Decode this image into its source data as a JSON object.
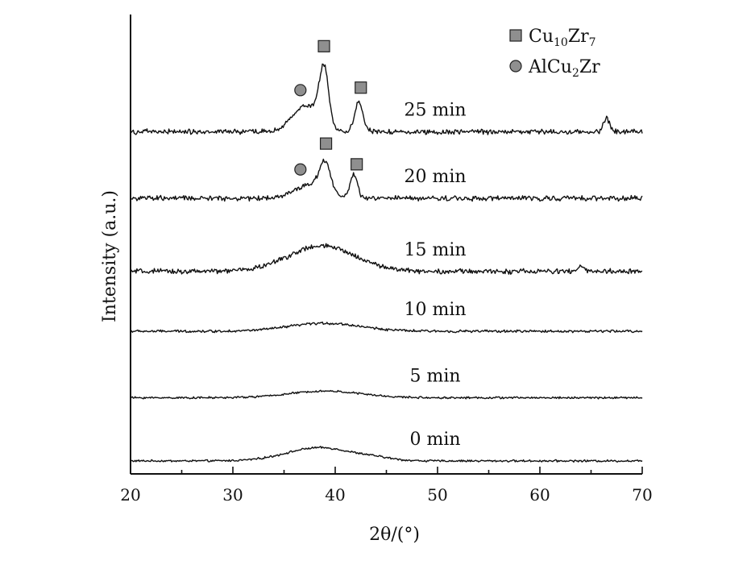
{
  "chart_data": {
    "type": "line",
    "xlabel": "2θ/(°)",
    "ylabel": "Intensity (a.u.)",
    "xlim": [
      20,
      70
    ],
    "xticks": [
      20,
      30,
      40,
      50,
      60,
      70
    ],
    "yticks": "none",
    "grid": false,
    "legend_position": "top-right",
    "legend": [
      {
        "marker": "square",
        "base": "Cu",
        "sub1": "10",
        "mid": "Zr",
        "sub2": "7",
        "color": "#8f8f8f"
      },
      {
        "marker": "circle",
        "base": "AlCu",
        "sub1": "2",
        "mid": "Zr",
        "sub2": "",
        "color": "#8f8f8f"
      }
    ],
    "series": [
      {
        "name": "0 min",
        "baseline": 0.05,
        "noise": 0.012,
        "peaks": [
          {
            "x": 38.5,
            "height": 0.2,
            "width": 3.2
          },
          {
            "x": 44,
            "height": 0.03,
            "width": 1.6
          }
        ]
      },
      {
        "name": "5 min",
        "baseline": 1.0,
        "noise": 0.012,
        "peaks": [
          {
            "x": 39,
            "height": 0.1,
            "width": 3.5
          }
        ]
      },
      {
        "name": "10 min",
        "baseline": 2.0,
        "noise": 0.015,
        "peaks": [
          {
            "x": 39,
            "height": 0.12,
            "width": 3.5
          }
        ]
      },
      {
        "name": "15 min",
        "baseline": 2.9,
        "noise": 0.03,
        "peaks": [
          {
            "x": 38.7,
            "height": 0.38,
            "width": 3.3
          },
          {
            "x": 64,
            "height": 0.08,
            "width": 0.3
          }
        ]
      },
      {
        "name": "20 min",
        "baseline": 4.0,
        "noise": 0.03,
        "peaks": [
          {
            "x": 37.5,
            "height": 0.2,
            "width": 1.5
          },
          {
            "x": 39.0,
            "height": 0.45,
            "width": 0.55
          },
          {
            "x": 41.8,
            "height": 0.35,
            "width": 0.35
          }
        ]
      },
      {
        "name": "25 min",
        "baseline": 5.0,
        "noise": 0.03,
        "peaks": [
          {
            "x": 37.2,
            "height": 0.4,
            "width": 1.3
          },
          {
            "x": 38.9,
            "height": 0.85,
            "width": 0.45
          },
          {
            "x": 42.3,
            "height": 0.45,
            "width": 0.4
          },
          {
            "x": 66.5,
            "height": 0.2,
            "width": 0.3
          }
        ]
      }
    ],
    "phase_markers": [
      {
        "series": "25 min",
        "x": 36.6,
        "marker": "circle"
      },
      {
        "series": "25 min",
        "x": 38.9,
        "marker": "square"
      },
      {
        "series": "25 min",
        "x": 42.5,
        "marker": "square"
      },
      {
        "series": "20 min",
        "x": 36.6,
        "marker": "circle"
      },
      {
        "series": "20 min",
        "x": 39.1,
        "marker": "square"
      },
      {
        "series": "20 min",
        "x": 42.1,
        "marker": "square"
      }
    ]
  }
}
